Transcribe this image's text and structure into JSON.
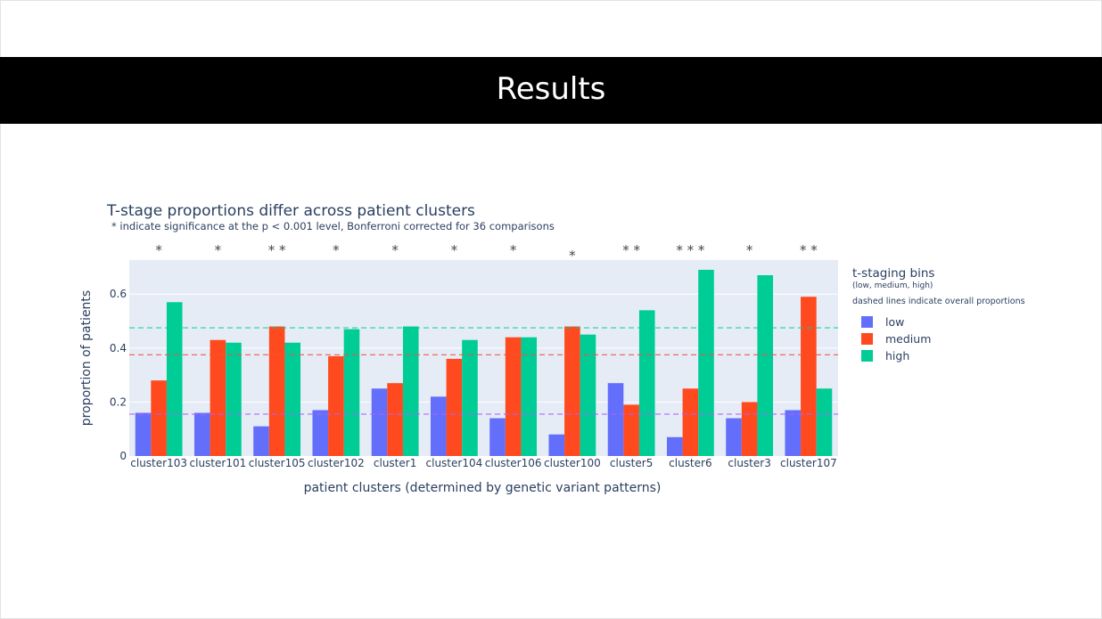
{
  "slide": {
    "title": "Results"
  },
  "chart_data": {
    "type": "bar",
    "title": "T-stage proportions differ across patient clusters",
    "subtitle": "* indicate significance at the p < 0.001 level, Bonferroni corrected for 36 comparisons",
    "xlabel": "patient clusters (determined by genetic variant patterns)",
    "ylabel": "proportion of patients",
    "ylim": [
      0,
      0.72
    ],
    "y_ticks": [
      0,
      0.2,
      0.4,
      0.6
    ],
    "y_tick_labels": [
      "0",
      "0.2",
      "0.4",
      "0.6"
    ],
    "grid": true,
    "legend_position": "right",
    "legend": {
      "title": "t-staging bins",
      "subtitle": "(low, medium, high)",
      "note": "dashed lines indicate overall proportions"
    },
    "categories": [
      "cluster103",
      "cluster101",
      "cluster105",
      "cluster102",
      "cluster1",
      "cluster104",
      "cluster106",
      "cluster100",
      "cluster5",
      "cluster6",
      "cluster3",
      "cluster107"
    ],
    "series": [
      {
        "name": "low",
        "color": "#636efa",
        "values": [
          0.16,
          0.16,
          0.11,
          0.17,
          0.25,
          0.22,
          0.14,
          0.08,
          0.27,
          0.07,
          0.14,
          0.17
        ]
      },
      {
        "name": "medium",
        "color": "#fe4a1e",
        "values": [
          0.28,
          0.43,
          0.48,
          0.37,
          0.27,
          0.36,
          0.44,
          0.48,
          0.19,
          0.25,
          0.2,
          0.59
        ]
      },
      {
        "name": "high",
        "color": "#00cc96",
        "values": [
          0.57,
          0.42,
          0.42,
          0.47,
          0.48,
          0.43,
          0.44,
          0.45,
          0.54,
          0.69,
          0.67,
          0.25
        ]
      }
    ],
    "overall_lines": [
      {
        "series": "low",
        "value": 0.155,
        "color": "#ab63fa"
      },
      {
        "series": "medium",
        "value": 0.375,
        "color": "#ef553b"
      },
      {
        "series": "high",
        "value": 0.475,
        "color": "#00cc96"
      }
    ],
    "significance_marks": [
      "*",
      "*",
      "* *",
      "*",
      "*",
      "*",
      "*",
      "*",
      "* *",
      "* * *",
      "*",
      "* *"
    ]
  }
}
